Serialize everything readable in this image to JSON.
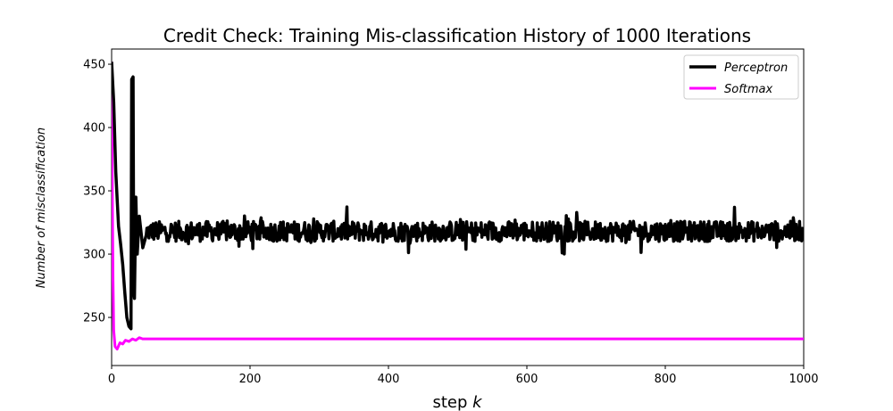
{
  "chart_data": {
    "type": "line",
    "title": "Credit Check: Training Mis-classification History of 1000 Iterations",
    "xlabel": "step",
    "xlabel_var": "k",
    "ylabel": "Number of misclassification",
    "xlim": [
      0,
      1000
    ],
    "ylim": [
      212,
      462
    ],
    "xticks": [
      0,
      200,
      400,
      600,
      800,
      1000
    ],
    "yticks": [
      250,
      300,
      350,
      400,
      450
    ],
    "grid": false,
    "legend_position": "top-right",
    "series": [
      {
        "name": "Perceptron",
        "color": "#000000",
        "keypoints": [
          [
            0,
            452
          ],
          [
            3,
            420
          ],
          [
            6,
            365
          ],
          [
            10,
            322
          ],
          [
            13,
            308
          ],
          [
            16,
            292
          ],
          [
            19,
            270
          ],
          [
            22,
            250
          ],
          [
            25,
            243
          ],
          [
            28,
            241
          ],
          [
            29,
            438
          ],
          [
            31,
            440
          ],
          [
            32,
            270
          ],
          [
            33,
            265
          ],
          [
            35,
            345
          ],
          [
            37,
            300
          ],
          [
            40,
            330
          ],
          [
            45,
            305
          ],
          [
            50,
            315
          ],
          [
            1000,
            318
          ]
        ],
        "steady_mean": 318,
        "steady_amplitude": 8
      },
      {
        "name": "Softmax",
        "color": "#ff00ff",
        "keypoints": [
          [
            0,
            452
          ],
          [
            1,
            350
          ],
          [
            2,
            280
          ],
          [
            3,
            240
          ],
          [
            5,
            227
          ],
          [
            8,
            225
          ],
          [
            12,
            230
          ],
          [
            16,
            229
          ],
          [
            20,
            232
          ],
          [
            25,
            231
          ],
          [
            30,
            233
          ],
          [
            35,
            232
          ],
          [
            40,
            234
          ],
          [
            45,
            233
          ],
          [
            50,
            233
          ],
          [
            1000,
            233
          ]
        ]
      }
    ]
  }
}
